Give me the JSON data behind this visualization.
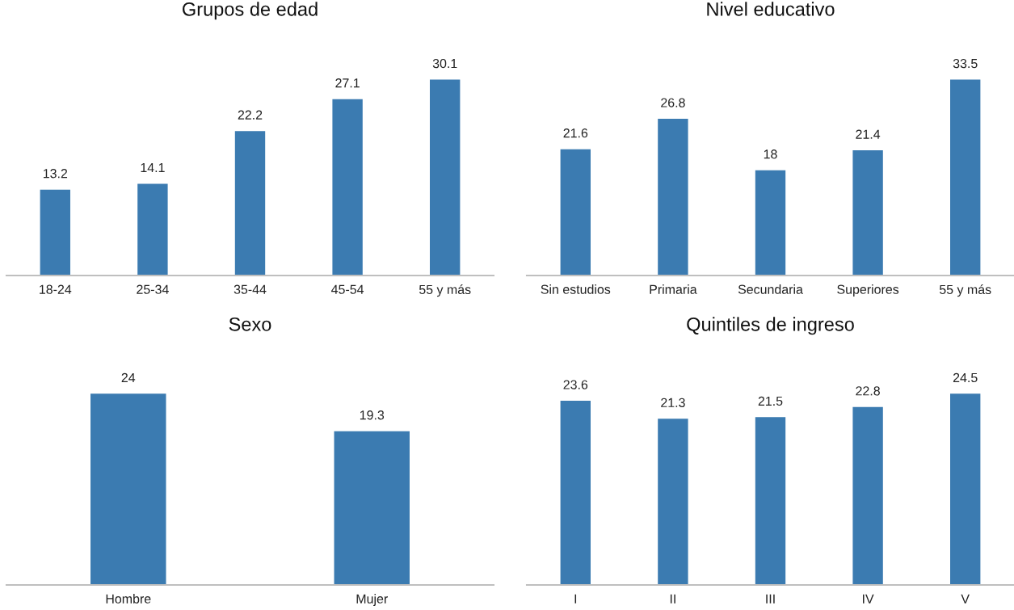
{
  "chart_data": [
    {
      "type": "bar",
      "title": "Grupos de edad",
      "categories": [
        "18-24",
        "25-34",
        "35-44",
        "45-54",
        "55 y más"
      ],
      "values": [
        13.2,
        14.1,
        22.2,
        27.1,
        30.1
      ],
      "color": "#3b7bb1",
      "data_labels": true,
      "tick_labels": "x",
      "grid": false
    },
    {
      "type": "bar",
      "title": "Nivel educativo",
      "categories": [
        "Sin estudios",
        "Primaria",
        "Secundaria",
        "Superiores",
        "55 y más"
      ],
      "values": [
        21.6,
        26.8,
        18,
        21.4,
        33.5
      ],
      "color": "#3b7bb1",
      "data_labels": true,
      "tick_labels": "x",
      "grid": false
    },
    {
      "type": "bar",
      "title": "Sexo",
      "categories": [
        "Hombre",
        "Mujer"
      ],
      "values": [
        24,
        19.3
      ],
      "color": "#3b7bb1",
      "data_labels": true,
      "tick_labels": "x",
      "grid": false
    },
    {
      "type": "bar",
      "title": "Quintiles de ingreso",
      "categories": [
        "I",
        "II",
        "III",
        "IV",
        "V"
      ],
      "values": [
        23.6,
        21.3,
        21.5,
        22.8,
        24.5
      ],
      "color": "#3b7bb1",
      "data_labels": true,
      "tick_labels": "x",
      "grid": false
    }
  ]
}
